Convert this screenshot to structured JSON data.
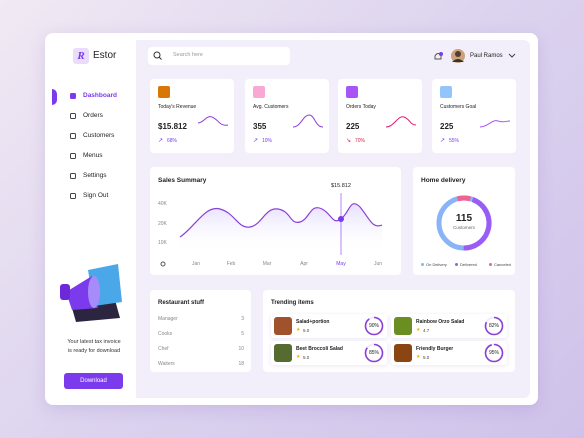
{
  "sidebar": {
    "logo": "R",
    "brand": "Estor",
    "menu": [
      "Dashboard",
      "Orders",
      "Customers",
      "Menus",
      "Settings",
      "Sign Out"
    ],
    "promo_text": "Your latest tax invoice is ready for download",
    "promo_button": "Download"
  },
  "header": {
    "search_placeholder": "Search here",
    "user_name": "Paul Ramos"
  },
  "stat_cards": [
    {
      "title": "Today's Revenue",
      "value": "$15.812",
      "change": "68%"
    },
    {
      "title": "Avg. Customers",
      "value": "355",
      "change": "10%"
    },
    {
      "title": "Orders Today",
      "value": "225",
      "change": "70%"
    },
    {
      "title": "Customers Goal",
      "value": "225",
      "change": "55%"
    }
  ],
  "sales_summary": {
    "title": "Sales Summary",
    "highlight": "$15.812",
    "y_labels": [
      "40K",
      "20K",
      "10K"
    ],
    "months": [
      "Jan",
      "Feb",
      "Mar",
      "Apr",
      "May",
      "Jun"
    ]
  },
  "home_delivery": {
    "title": "Home delivery",
    "total": "115",
    "total_label": "Customers",
    "legend": [
      "On Delivery",
      "Delivered",
      "Canceled"
    ]
  },
  "restaurant_staff": {
    "title": "Restaurant stuff",
    "rows": [
      [
        "Manager",
        "3"
      ],
      [
        "Cooks",
        "5"
      ],
      [
        "Chef",
        "10"
      ],
      [
        "Waiters",
        "18"
      ]
    ]
  },
  "trending": {
    "title": "Trending items",
    "items": [
      {
        "name": "Salad+portion",
        "rating": "5.0",
        "progress": 90,
        "progress_label": "90%"
      },
      {
        "name": "Rainbow Orzo Salad",
        "rating": "4.7",
        "progress": 82,
        "progress_label": "82%"
      },
      {
        "name": "Beet Broccoli Salad",
        "rating": "5.0",
        "progress": 85,
        "progress_label": "85%"
      },
      {
        "name": "Friendly Burger",
        "rating": "5.0",
        "progress": 95,
        "progress_label": "95%"
      }
    ]
  }
}
